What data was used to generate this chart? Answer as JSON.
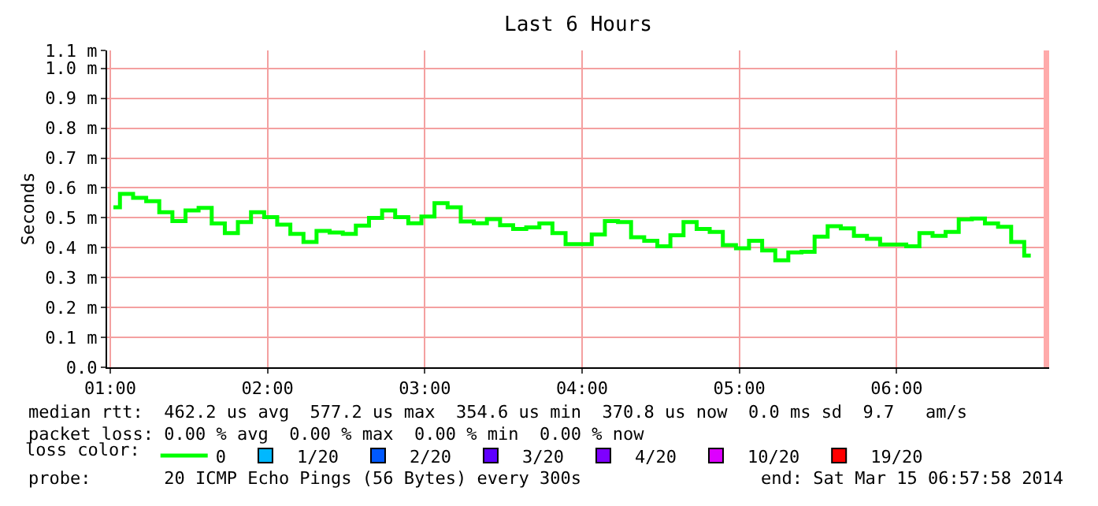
{
  "chart_data": {
    "type": "step",
    "title": "Last 6 Hours",
    "ylabel": "Seconds",
    "legend_title": "loss color:",
    "x": [
      1.02,
      1.103,
      1.187,
      1.27,
      1.353,
      1.437,
      1.52,
      1.603,
      1.687,
      1.77,
      1.853,
      1.937,
      2.02,
      2.103,
      2.187,
      2.27,
      2.353,
      2.437,
      2.52,
      2.603,
      2.687,
      2.77,
      2.853,
      2.937,
      3.02,
      3.103,
      3.187,
      3.27,
      3.353,
      3.437,
      3.52,
      3.603,
      3.687,
      3.77,
      3.853,
      3.937,
      4.02,
      4.103,
      4.187,
      4.27,
      4.353,
      4.437,
      4.52,
      4.603,
      4.687,
      4.77,
      4.853,
      4.937,
      5.02,
      5.103,
      5.187,
      5.27,
      5.353,
      5.437,
      5.52,
      5.603,
      5.687,
      5.77,
      5.853,
      5.937,
      6.02,
      6.103,
      6.187,
      6.27,
      6.353,
      6.437,
      6.52,
      6.603,
      6.687,
      6.77,
      6.853
    ],
    "series": [
      {
        "name": "0",
        "color": "#00ff00",
        "values": [
          0.535,
          0.58,
          0.567,
          0.556,
          0.519,
          0.489,
          0.525,
          0.533,
          0.481,
          0.449,
          0.486,
          0.519,
          0.502,
          0.477,
          0.446,
          0.419,
          0.456,
          0.451,
          0.446,
          0.474,
          0.5,
          0.525,
          0.502,
          0.482,
          0.504,
          0.549,
          0.535,
          0.488,
          0.482,
          0.496,
          0.475,
          0.463,
          0.468,
          0.481,
          0.449,
          0.412,
          0.412,
          0.444,
          0.489,
          0.486,
          0.435,
          0.423,
          0.405,
          0.442,
          0.486,
          0.463,
          0.453,
          0.409,
          0.398,
          0.423,
          0.391,
          0.358,
          0.384,
          0.386,
          0.437,
          0.472,
          0.465,
          0.44,
          0.43,
          0.411,
          0.411,
          0.405,
          0.449,
          0.44,
          0.453,
          0.495,
          0.498,
          0.481,
          0.47,
          0.419,
          0.374
        ]
      },
      {
        "name": "1/20",
        "color": "#00b8ff",
        "values": [
          null,
          null,
          null,
          null,
          null,
          null,
          null,
          null,
          null,
          null,
          null,
          null,
          null,
          null,
          null,
          null,
          null,
          null,
          null,
          null,
          null,
          null,
          null,
          null,
          null,
          null,
          null,
          null,
          null,
          null,
          null,
          null,
          null,
          null,
          null,
          null,
          null,
          null,
          null,
          null,
          null,
          null,
          null,
          null,
          null,
          null,
          null,
          null,
          null,
          null,
          null,
          null,
          null,
          null,
          null,
          null,
          null,
          null,
          null,
          null,
          null,
          null,
          null,
          null,
          null,
          null,
          null,
          null,
          null,
          null,
          null
        ]
      },
      {
        "name": "2/20",
        "color": "#0059ff",
        "values": [
          null,
          null,
          null,
          null,
          null,
          null,
          null,
          null,
          null,
          null,
          null,
          null,
          null,
          null,
          null,
          null,
          null,
          null,
          null,
          null,
          null,
          null,
          null,
          null,
          null,
          null,
          null,
          null,
          null,
          null,
          null,
          null,
          null,
          null,
          null,
          null,
          null,
          null,
          null,
          null,
          null,
          null,
          null,
          null,
          null,
          null,
          null,
          null,
          null,
          null,
          null,
          null,
          null,
          null,
          null,
          null,
          null,
          null,
          null,
          null,
          null,
          null,
          null,
          null,
          null,
          null,
          null,
          null,
          null,
          null,
          null
        ]
      },
      {
        "name": "3/20",
        "color": "#5e00ff",
        "values": [
          null,
          null,
          null,
          null,
          null,
          null,
          null,
          null,
          null,
          null,
          null,
          null,
          null,
          null,
          null,
          null,
          null,
          null,
          null,
          null,
          null,
          null,
          null,
          null,
          null,
          null,
          null,
          null,
          null,
          null,
          null,
          null,
          null,
          null,
          null,
          null,
          null,
          null,
          null,
          null,
          null,
          null,
          null,
          null,
          null,
          null,
          null,
          null,
          null,
          null,
          null,
          null,
          null,
          null,
          null,
          null,
          null,
          null,
          null,
          null,
          null,
          null,
          null,
          null,
          null,
          null,
          null,
          null,
          null,
          null,
          null
        ]
      },
      {
        "name": "4/20",
        "color": "#7e00ff",
        "values": [
          null,
          null,
          null,
          null,
          null,
          null,
          null,
          null,
          null,
          null,
          null,
          null,
          null,
          null,
          null,
          null,
          null,
          null,
          null,
          null,
          null,
          null,
          null,
          null,
          null,
          null,
          null,
          null,
          null,
          null,
          null,
          null,
          null,
          null,
          null,
          null,
          null,
          null,
          null,
          null,
          null,
          null,
          null,
          null,
          null,
          null,
          null,
          null,
          null,
          null,
          null,
          null,
          null,
          null,
          null,
          null,
          null,
          null,
          null,
          null,
          null,
          null,
          null,
          null,
          null,
          null,
          null,
          null,
          null,
          null,
          null
        ]
      },
      {
        "name": "10/20",
        "color": "#dd00ff",
        "values": [
          null,
          null,
          null,
          null,
          null,
          null,
          null,
          null,
          null,
          null,
          null,
          null,
          null,
          null,
          null,
          null,
          null,
          null,
          null,
          null,
          null,
          null,
          null,
          null,
          null,
          null,
          null,
          null,
          null,
          null,
          null,
          null,
          null,
          null,
          null,
          null,
          null,
          null,
          null,
          null,
          null,
          null,
          null,
          null,
          null,
          null,
          null,
          null,
          null,
          null,
          null,
          null,
          null,
          null,
          null,
          null,
          null,
          null,
          null,
          null,
          null,
          null,
          null,
          null,
          null,
          null,
          null,
          null,
          null,
          null,
          null
        ]
      },
      {
        "name": "19/20",
        "color": "#ff0000",
        "values": [
          null,
          null,
          null,
          null,
          null,
          null,
          null,
          null,
          null,
          null,
          null,
          null,
          null,
          null,
          null,
          null,
          null,
          null,
          null,
          null,
          null,
          null,
          null,
          null,
          null,
          null,
          null,
          null,
          null,
          null,
          null,
          null,
          null,
          null,
          null,
          null,
          null,
          null,
          null,
          null,
          null,
          null,
          null,
          null,
          null,
          null,
          null,
          null,
          null,
          null,
          null,
          null,
          null,
          null,
          null,
          null,
          null,
          null,
          null,
          null,
          null,
          null,
          null,
          null,
          null,
          null,
          null,
          null,
          null,
          null,
          null
        ]
      }
    ],
    "xlim": [
      0.98,
      6.97
    ],
    "xticks": [
      {
        "value": 1,
        "label": "01:00"
      },
      {
        "value": 2,
        "label": "02:00"
      },
      {
        "value": 3,
        "label": "03:00"
      },
      {
        "value": 4,
        "label": "04:00"
      },
      {
        "value": 5,
        "label": "05:00"
      },
      {
        "value": 6,
        "label": "06:00"
      }
    ],
    "ylim": [
      0,
      1.06
    ],
    "yticks": [
      {
        "value": 0,
        "label": "0.0"
      },
      {
        "value": 0.1,
        "label": "0.1 m"
      },
      {
        "value": 0.2,
        "label": "0.2 m"
      },
      {
        "value": 0.3,
        "label": "0.3 m"
      },
      {
        "value": 0.4,
        "label": "0.4 m"
      },
      {
        "value": 0.5,
        "label": "0.5 m"
      },
      {
        "value": 0.6,
        "label": "0.6 m"
      },
      {
        "value": 0.7,
        "label": "0.7 m"
      },
      {
        "value": 0.8,
        "label": "0.8 m"
      },
      {
        "value": 0.9,
        "label": "0.9 m"
      },
      {
        "value": 1.0,
        "label": "1.0 m"
      },
      {
        "value": 1.06,
        "label": "1.1 m"
      }
    ],
    "ref_lines": [
      {
        "axis": "x",
        "value": 6.955,
        "label": null,
        "color": "#ffaaaa"
      }
    ],
    "grid": true,
    "legend": "bottom",
    "annotations": [
      "median rtt:  462.2 us avg  577.2 us max  354.6 us min  370.8 us now  0.0 ms sd  9.7   am/s",
      "packet loss: 0.00 % avg  0.00 % max  0.00 % min  0.00 % now",
      "probe:       20 ICMP Echo Pings (56 Bytes) every 300s",
      "end: Sat Mar 15 06:57:58 2014"
    ]
  }
}
